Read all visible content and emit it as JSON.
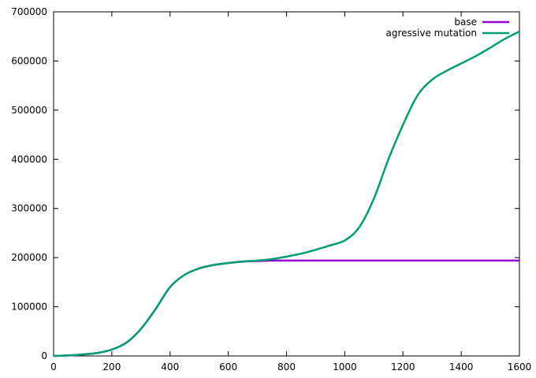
{
  "chart_data": {
    "type": "line",
    "title": "",
    "xlabel": "",
    "ylabel": "",
    "xlim": [
      0,
      1600
    ],
    "ylim": [
      0,
      700000
    ],
    "xticks": [
      0,
      200,
      400,
      600,
      800,
      1000,
      1200,
      1400,
      1600
    ],
    "yticks": [
      0,
      100000,
      200000,
      300000,
      400000,
      500000,
      600000,
      700000
    ],
    "grid": false,
    "legend_position": "top-right",
    "series": [
      {
        "name": "base",
        "color": "#9400d3",
        "x": [
          0,
          50,
          100,
          150,
          200,
          250,
          300,
          350,
          400,
          450,
          500,
          550,
          600,
          650,
          700,
          750,
          800,
          900,
          1000,
          1200,
          1400,
          1600
        ],
        "y": [
          0,
          1000,
          3000,
          6000,
          13000,
          27000,
          55000,
          95000,
          140000,
          165000,
          178000,
          185000,
          189000,
          192000,
          193000,
          194000,
          194000,
          194000,
          194000,
          194000,
          194000,
          194000
        ]
      },
      {
        "name": "agressive mutation",
        "color": "#009e73",
        "x": [
          0,
          50,
          100,
          150,
          200,
          250,
          300,
          350,
          400,
          450,
          500,
          550,
          600,
          650,
          700,
          750,
          800,
          850,
          900,
          950,
          1000,
          1050,
          1100,
          1150,
          1200,
          1250,
          1300,
          1350,
          1400,
          1450,
          1500,
          1550,
          1600
        ],
        "y": [
          0,
          1000,
          3000,
          6000,
          13000,
          27000,
          55000,
          95000,
          140000,
          165000,
          178000,
          185000,
          189000,
          192000,
          194000,
          197000,
          202000,
          208000,
          216000,
          225000,
          235000,
          262000,
          320000,
          400000,
          470000,
          530000,
          562000,
          580000,
          595000,
          610000,
          627000,
          645000,
          660000
        ]
      }
    ]
  }
}
